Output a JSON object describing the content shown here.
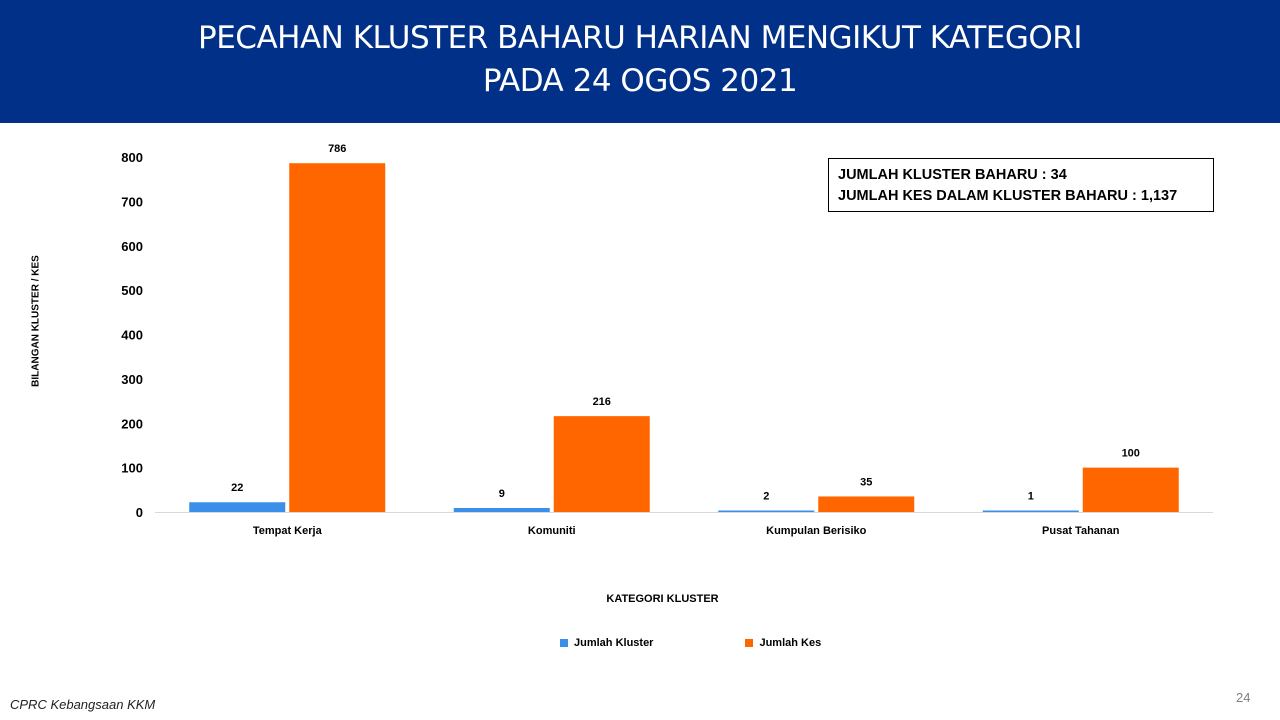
{
  "header": {
    "title_line1": "PECAHAN KLUSTER BAHARU HARIAN MENGIKUT KATEGORI",
    "title_line2": "PADA 24 OGOS 2021",
    "background_color": "#003087"
  },
  "summary": {
    "line1": "JUMLAH KLUSTER BAHARU : 34",
    "line2": "JUMLAH KES DALAM KLUSTER BAHARU : 1,137"
  },
  "chart_data": {
    "type": "bar",
    "title": "",
    "xlabel": "KATEGORI KLUSTER",
    "ylabel": "BILANGAN KLUSTER / KES",
    "ylim": [
      0,
      800
    ],
    "yticks": [
      0,
      100,
      200,
      300,
      400,
      500,
      600,
      700,
      800
    ],
    "grid": false,
    "legend_position": "bottom",
    "categories": [
      "Tempat Kerja",
      "Komuniti",
      "Kumpulan Berisiko",
      "Pusat Tahanan"
    ],
    "series": [
      {
        "name": "Jumlah Kluster",
        "color": "#3c8fe8",
        "values": [
          22,
          9,
          2,
          1
        ]
      },
      {
        "name": "Jumlah Kes",
        "color": "#ff6600",
        "values": [
          786,
          216,
          35,
          100
        ]
      }
    ]
  },
  "footer": {
    "source": "CPRC Kebangsaan KKM",
    "page_number": "24"
  }
}
